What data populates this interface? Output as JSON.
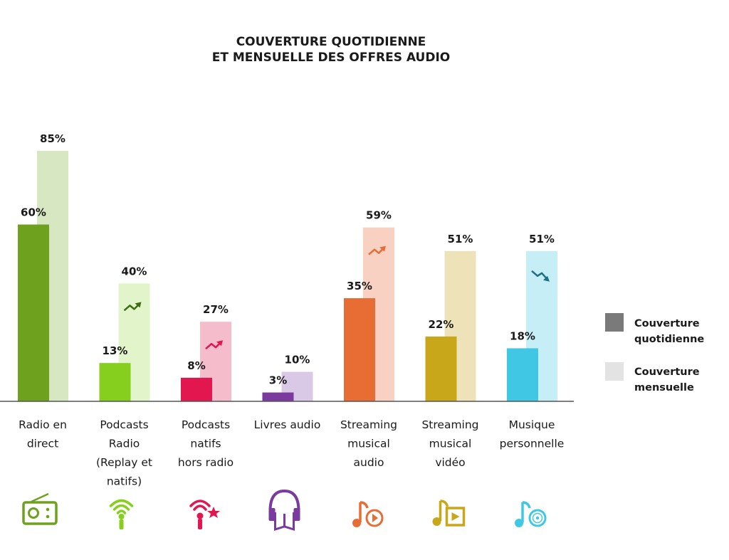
{
  "chart_data": {
    "type": "bar",
    "title": [
      "COUVERTURE QUOTIDIENNE",
      "ET MENSUELLE DES OFFRES AUDIO"
    ],
    "categories": [
      [
        "Radio en",
        "direct"
      ],
      [
        "Podcasts",
        "Radio",
        "(Replay et",
        "natifs)"
      ],
      [
        "Podcasts",
        "natifs",
        "hors radio"
      ],
      [
        "Livres audio"
      ],
      [
        "Streaming",
        "musical",
        "audio"
      ],
      [
        "Streaming",
        "musical",
        "vidéo"
      ],
      [
        "Musique",
        "personnelle"
      ]
    ],
    "series": [
      {
        "name": "Couverture quotidienne",
        "values": [
          60,
          13,
          8,
          3,
          35,
          22,
          18
        ]
      },
      {
        "name": "Couverture mensuelle",
        "values": [
          85,
          40,
          27,
          10,
          59,
          51,
          51
        ]
      }
    ],
    "value_labels": {
      "daily": [
        "60%",
        "13%",
        "8%",
        "3%",
        "35%",
        "22%",
        "18%"
      ],
      "monthly": [
        "85%",
        "40%",
        "27%",
        "10%",
        "59%",
        "51%",
        "51%"
      ]
    },
    "ylim": [
      0,
      100
    ],
    "grid": false,
    "legend_position": "right",
    "colors": {
      "daily": [
        "#6ea21e",
        "#87cf1e",
        "#e2174f",
        "#7a3a9e",
        "#e86d35",
        "#c9a71b",
        "#3fc7e4"
      ],
      "monthly": [
        "#d6e7c1",
        "#e2f4c9",
        "#f5bccc",
        "#d9c8e6",
        "#f8d1c2",
        "#eee3b8",
        "#c6eef7"
      ],
      "legend_daily": "#7a7a7a",
      "legend_monthly": "#e3e3e3"
    },
    "trend_arrows": [
      {
        "category_index": 1,
        "direction": "up",
        "color": "#3d6e12"
      },
      {
        "category_index": 2,
        "direction": "up",
        "color": "#e2174f"
      },
      {
        "category_index": 4,
        "direction": "up",
        "color": "#e86d35"
      },
      {
        "category_index": 6,
        "direction": "down",
        "color": "#1f6f86"
      }
    ],
    "icons": [
      "radio-icon",
      "podcast-radio-icon",
      "podcast-native-icon",
      "audiobook-icon",
      "music-streaming-icon",
      "video-streaming-icon",
      "personal-music-icon"
    ]
  },
  "legend": {
    "daily": [
      "Couverture",
      "quotidienne"
    ],
    "monthly": [
      "Couverture",
      "mensuelle"
    ]
  }
}
